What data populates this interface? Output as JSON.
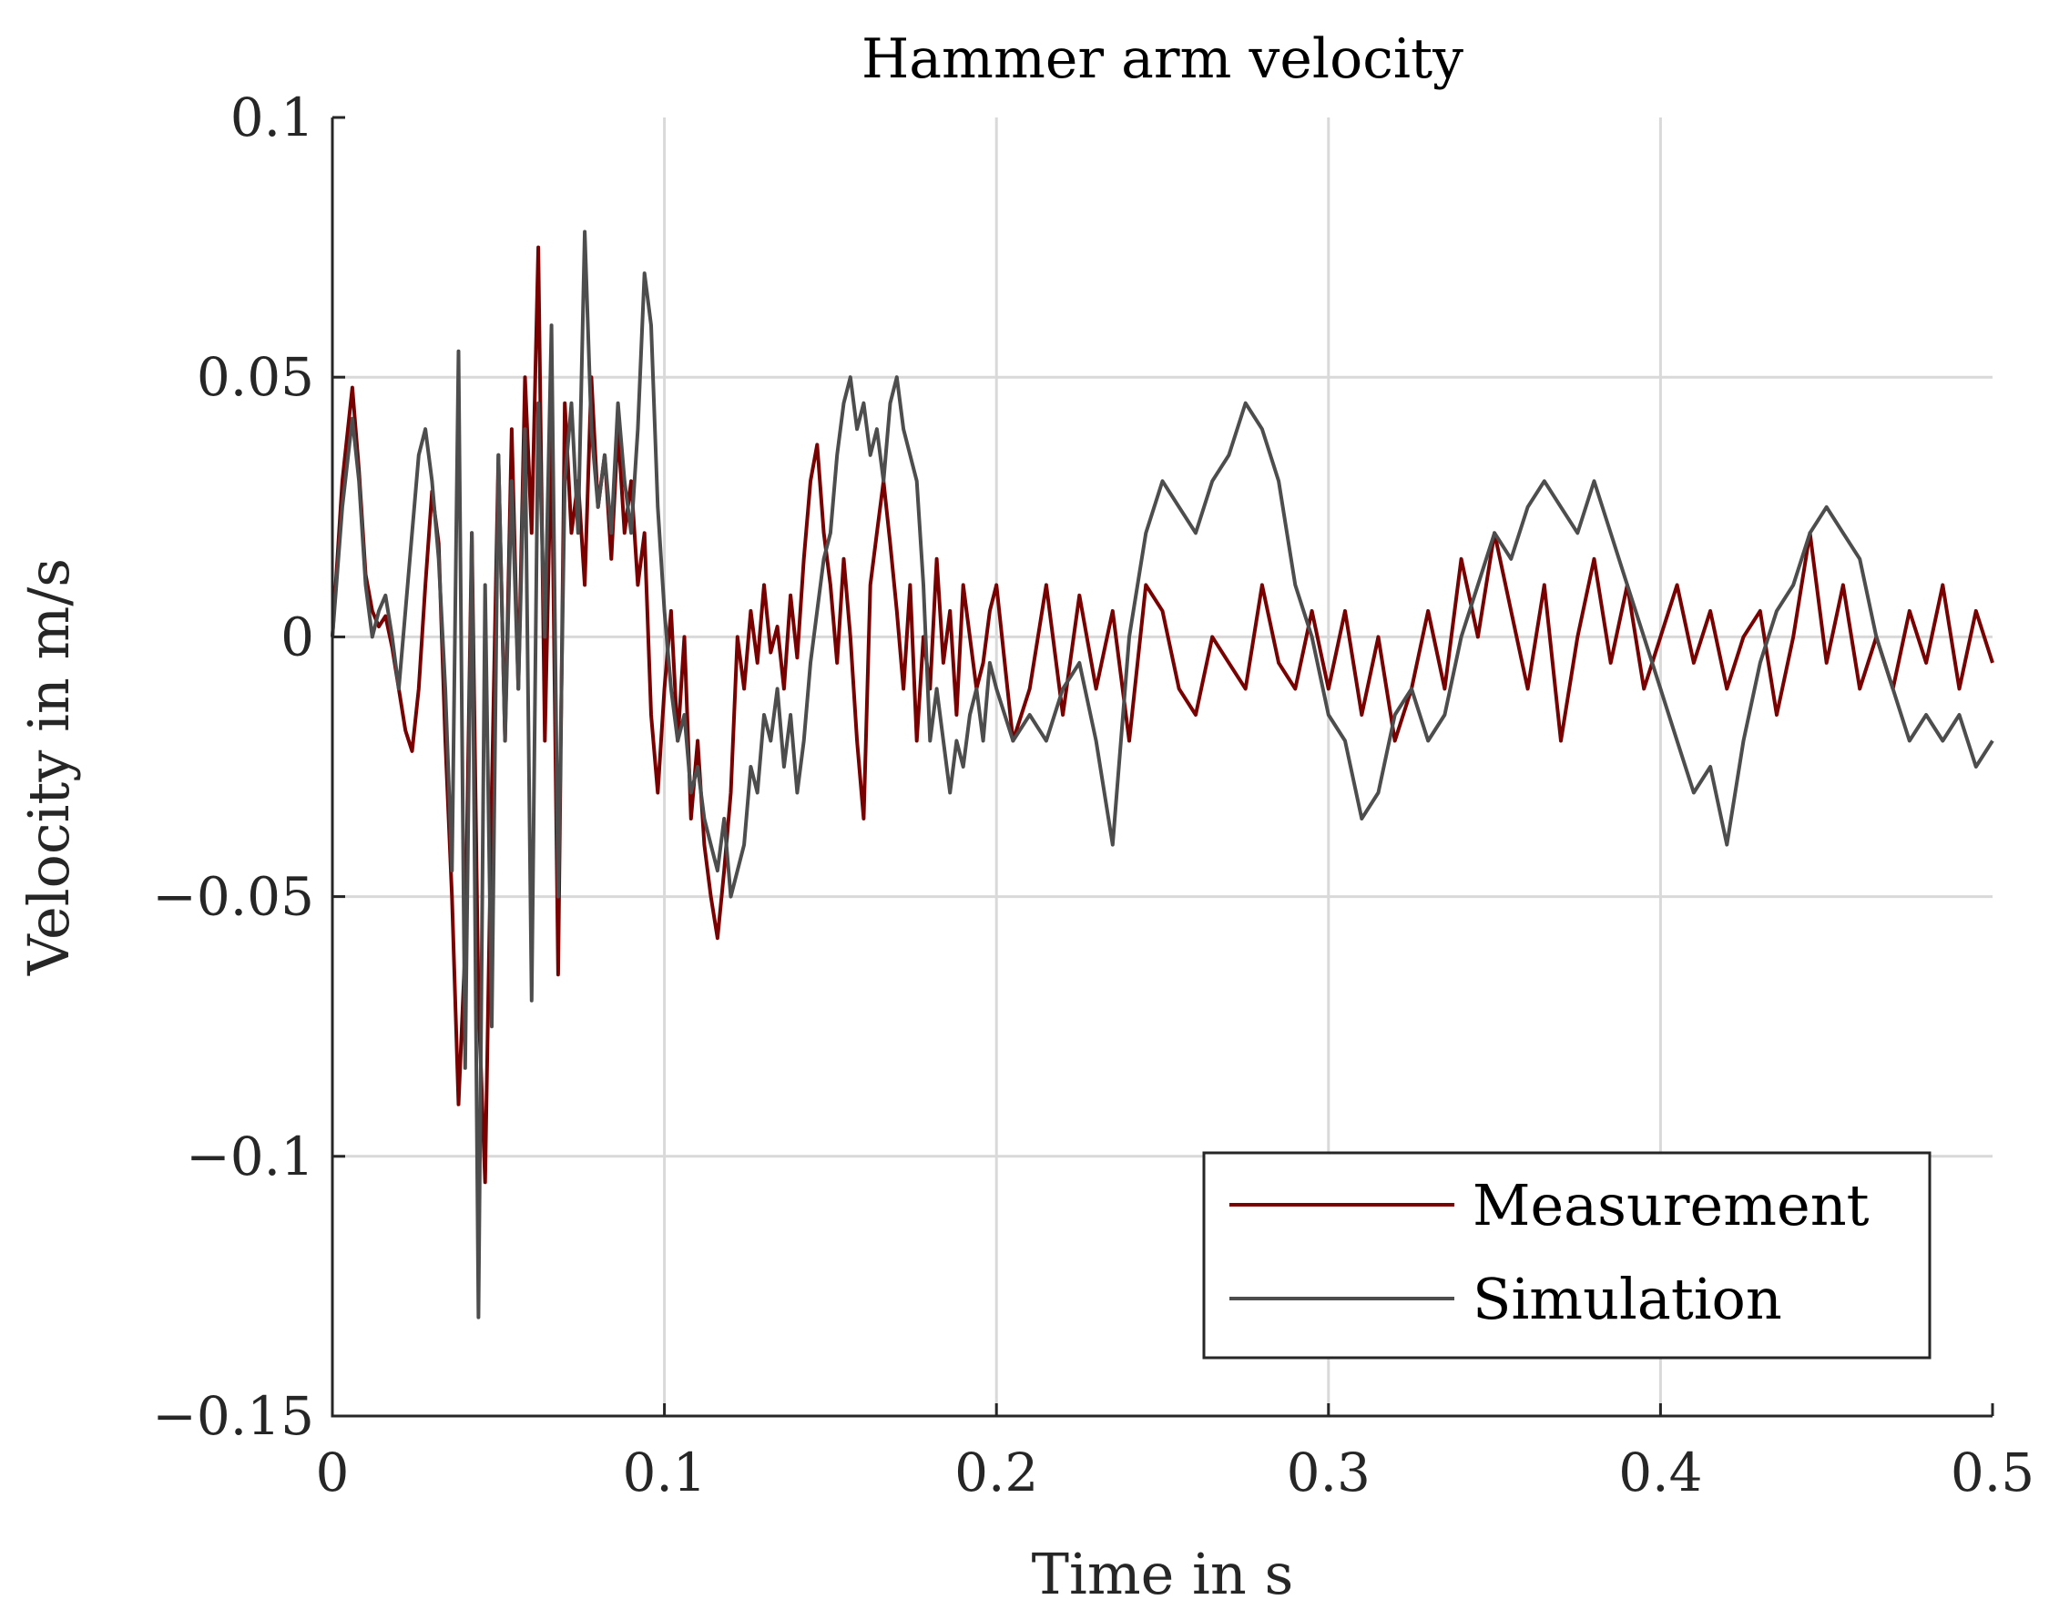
{
  "chart_data": {
    "type": "line",
    "title": "Hammer arm velocity",
    "xlabel": "Time in s",
    "ylabel": "Velocity in m/s",
    "xlim": [
      0,
      0.5
    ],
    "ylim": [
      -0.15,
      0.1
    ],
    "xticks": [
      0,
      0.1,
      0.2,
      0.3,
      0.4,
      0.5
    ],
    "xtick_labels": [
      "0",
      "0.1",
      "0.2",
      "0.3",
      "0.4",
      "0.5"
    ],
    "yticks": [
      -0.15,
      -0.1,
      -0.05,
      0,
      0.05,
      0.1
    ],
    "ytick_labels": [
      "−0.15",
      "−0.1",
      "−0.05",
      "0",
      "0.05",
      "0.1"
    ],
    "grid": true,
    "legend_location": "bottom-right",
    "series": [
      {
        "name": "Measurement",
        "color": "#7a0000",
        "x": [
          0,
          0.003,
          0.006,
          0.008,
          0.01,
          0.012,
          0.014,
          0.016,
          0.018,
          0.02,
          0.022,
          0.024,
          0.026,
          0.028,
          0.03,
          0.032,
          0.034,
          0.036,
          0.038,
          0.04,
          0.042,
          0.044,
          0.046,
          0.048,
          0.05,
          0.052,
          0.054,
          0.056,
          0.058,
          0.06,
          0.062,
          0.064,
          0.066,
          0.068,
          0.07,
          0.072,
          0.074,
          0.076,
          0.078,
          0.08,
          0.082,
          0.084,
          0.086,
          0.088,
          0.09,
          0.092,
          0.094,
          0.096,
          0.098,
          0.1,
          0.102,
          0.104,
          0.106,
          0.108,
          0.11,
          0.112,
          0.114,
          0.116,
          0.118,
          0.12,
          0.122,
          0.124,
          0.126,
          0.128,
          0.13,
          0.132,
          0.134,
          0.136,
          0.138,
          0.14,
          0.142,
          0.144,
          0.146,
          0.148,
          0.15,
          0.152,
          0.154,
          0.156,
          0.158,
          0.16,
          0.162,
          0.164,
          0.166,
          0.168,
          0.17,
          0.172,
          0.174,
          0.176,
          0.178,
          0.18,
          0.182,
          0.184,
          0.186,
          0.188,
          0.19,
          0.192,
          0.194,
          0.196,
          0.198,
          0.2,
          0.205,
          0.21,
          0.215,
          0.22,
          0.225,
          0.23,
          0.235,
          0.24,
          0.245,
          0.25,
          0.255,
          0.26,
          0.265,
          0.27,
          0.275,
          0.28,
          0.285,
          0.29,
          0.295,
          0.3,
          0.305,
          0.31,
          0.315,
          0.32,
          0.325,
          0.33,
          0.335,
          0.34,
          0.345,
          0.35,
          0.355,
          0.36,
          0.365,
          0.37,
          0.375,
          0.38,
          0.385,
          0.39,
          0.395,
          0.4,
          0.405,
          0.41,
          0.415,
          0.42,
          0.425,
          0.43,
          0.435,
          0.44,
          0.445,
          0.45,
          0.455,
          0.46,
          0.465,
          0.47,
          0.475,
          0.48,
          0.485,
          0.49,
          0.495,
          0.5
        ],
        "y": [
          0,
          0.03,
          0.048,
          0.032,
          0.012,
          0.005,
          0.002,
          0.004,
          -0.002,
          -0.01,
          -0.018,
          -0.022,
          -0.01,
          0.01,
          0.028,
          0.018,
          -0.02,
          -0.05,
          -0.09,
          -0.06,
          0.02,
          -0.07,
          -0.105,
          -0.03,
          0.035,
          -0.02,
          0.04,
          -0.01,
          0.05,
          0.02,
          0.075,
          -0.02,
          0.04,
          -0.065,
          0.045,
          0.02,
          0.03,
          0.01,
          0.05,
          0.025,
          0.035,
          0.015,
          0.04,
          0.02,
          0.03,
          0.01,
          0.02,
          -0.015,
          -0.03,
          -0.01,
          0.005,
          -0.02,
          0.0,
          -0.035,
          -0.02,
          -0.04,
          -0.05,
          -0.058,
          -0.045,
          -0.03,
          0.0,
          -0.01,
          0.005,
          -0.005,
          0.01,
          -0.003,
          0.002,
          -0.01,
          0.008,
          -0.004,
          0.015,
          0.03,
          0.037,
          0.02,
          0.01,
          -0.005,
          0.015,
          0.0,
          -0.02,
          -0.035,
          0.01,
          0.02,
          0.03,
          0.018,
          0.005,
          -0.01,
          0.01,
          -0.02,
          0.0,
          -0.01,
          0.015,
          -0.005,
          0.005,
          -0.015,
          0.01,
          0.0,
          -0.01,
          -0.005,
          0.005,
          0.01,
          -0.02,
          -0.01,
          0.01,
          -0.015,
          0.008,
          -0.01,
          0.005,
          -0.02,
          0.01,
          0.005,
          -0.01,
          -0.015,
          0.0,
          -0.005,
          -0.01,
          0.01,
          -0.005,
          -0.01,
          0.005,
          -0.01,
          0.005,
          -0.015,
          0.0,
          -0.02,
          -0.01,
          0.005,
          -0.01,
          0.015,
          0.0,
          0.02,
          0.005,
          -0.01,
          0.01,
          -0.02,
          0.0,
          0.015,
          -0.005,
          0.01,
          -0.01,
          0.0,
          0.01,
          -0.005,
          0.005,
          -0.01,
          0.0,
          0.005,
          -0.015,
          0.0,
          0.02,
          -0.005,
          0.01,
          -0.01,
          0.0,
          -0.01,
          0.005,
          -0.005,
          0.01,
          -0.01,
          0.005,
          -0.005
        ]
      },
      {
        "name": "Simulation",
        "color": "#4d4d4d",
        "x": [
          0,
          0.003,
          0.006,
          0.008,
          0.01,
          0.012,
          0.014,
          0.016,
          0.018,
          0.02,
          0.022,
          0.024,
          0.026,
          0.028,
          0.03,
          0.032,
          0.034,
          0.036,
          0.038,
          0.04,
          0.042,
          0.044,
          0.046,
          0.048,
          0.05,
          0.052,
          0.054,
          0.056,
          0.058,
          0.06,
          0.062,
          0.064,
          0.066,
          0.068,
          0.07,
          0.072,
          0.074,
          0.076,
          0.078,
          0.08,
          0.082,
          0.084,
          0.086,
          0.088,
          0.09,
          0.092,
          0.094,
          0.096,
          0.098,
          0.1,
          0.102,
          0.104,
          0.106,
          0.108,
          0.11,
          0.112,
          0.114,
          0.116,
          0.118,
          0.12,
          0.122,
          0.124,
          0.126,
          0.128,
          0.13,
          0.132,
          0.134,
          0.136,
          0.138,
          0.14,
          0.142,
          0.144,
          0.146,
          0.148,
          0.15,
          0.152,
          0.154,
          0.156,
          0.158,
          0.16,
          0.162,
          0.164,
          0.166,
          0.168,
          0.17,
          0.172,
          0.174,
          0.176,
          0.178,
          0.18,
          0.182,
          0.184,
          0.186,
          0.188,
          0.19,
          0.192,
          0.194,
          0.196,
          0.198,
          0.2,
          0.205,
          0.21,
          0.215,
          0.22,
          0.225,
          0.23,
          0.235,
          0.24,
          0.245,
          0.25,
          0.255,
          0.26,
          0.265,
          0.27,
          0.275,
          0.28,
          0.285,
          0.29,
          0.295,
          0.3,
          0.305,
          0.31,
          0.315,
          0.32,
          0.325,
          0.33,
          0.335,
          0.34,
          0.345,
          0.35,
          0.355,
          0.36,
          0.365,
          0.37,
          0.375,
          0.38,
          0.385,
          0.39,
          0.395,
          0.4,
          0.405,
          0.41,
          0.415,
          0.42,
          0.425,
          0.43,
          0.435,
          0.44,
          0.445,
          0.45,
          0.455,
          0.46,
          0.465,
          0.47,
          0.475,
          0.48,
          0.485,
          0.49,
          0.495,
          0.5
        ],
        "y": [
          0,
          0.025,
          0.042,
          0.03,
          0.01,
          0.0,
          0.005,
          0.008,
          0.0,
          -0.01,
          0.005,
          0.02,
          0.035,
          0.04,
          0.03,
          0.015,
          -0.01,
          -0.045,
          0.055,
          -0.083,
          0.02,
          -0.131,
          0.01,
          -0.075,
          0.035,
          -0.02,
          0.03,
          -0.01,
          0.04,
          -0.07,
          0.045,
          0.0,
          0.06,
          -0.05,
          0.03,
          0.045,
          0.02,
          0.078,
          0.04,
          0.025,
          0.035,
          0.02,
          0.045,
          0.03,
          0.02,
          0.04,
          0.07,
          0.06,
          0.025,
          0.005,
          -0.01,
          -0.02,
          -0.015,
          -0.03,
          -0.025,
          -0.035,
          -0.04,
          -0.045,
          -0.035,
          -0.05,
          -0.045,
          -0.04,
          -0.025,
          -0.03,
          -0.015,
          -0.02,
          -0.01,
          -0.025,
          -0.015,
          -0.03,
          -0.02,
          -0.005,
          0.005,
          0.015,
          0.02,
          0.035,
          0.045,
          0.05,
          0.04,
          0.045,
          0.035,
          0.04,
          0.03,
          0.045,
          0.05,
          0.04,
          0.035,
          0.03,
          0.01,
          -0.02,
          -0.01,
          -0.02,
          -0.03,
          -0.02,
          -0.025,
          -0.015,
          -0.01,
          -0.02,
          -0.005,
          -0.01,
          -0.02,
          -0.015,
          -0.02,
          -0.01,
          -0.005,
          -0.02,
          -0.04,
          0.0,
          0.02,
          0.03,
          0.025,
          0.02,
          0.03,
          0.035,
          0.045,
          0.04,
          0.03,
          0.01,
          0.0,
          -0.015,
          -0.02,
          -0.035,
          -0.03,
          -0.015,
          -0.01,
          -0.02,
          -0.015,
          0.0,
          0.01,
          0.02,
          0.015,
          0.025,
          0.03,
          0.025,
          0.02,
          0.03,
          0.02,
          0.01,
          0.0,
          -0.01,
          -0.02,
          -0.03,
          -0.025,
          -0.04,
          -0.02,
          -0.005,
          0.005,
          0.01,
          0.02,
          0.025,
          0.02,
          0.015,
          0.0,
          -0.01,
          -0.02,
          -0.015,
          -0.02,
          -0.015,
          -0.025,
          -0.02
        ]
      }
    ]
  }
}
